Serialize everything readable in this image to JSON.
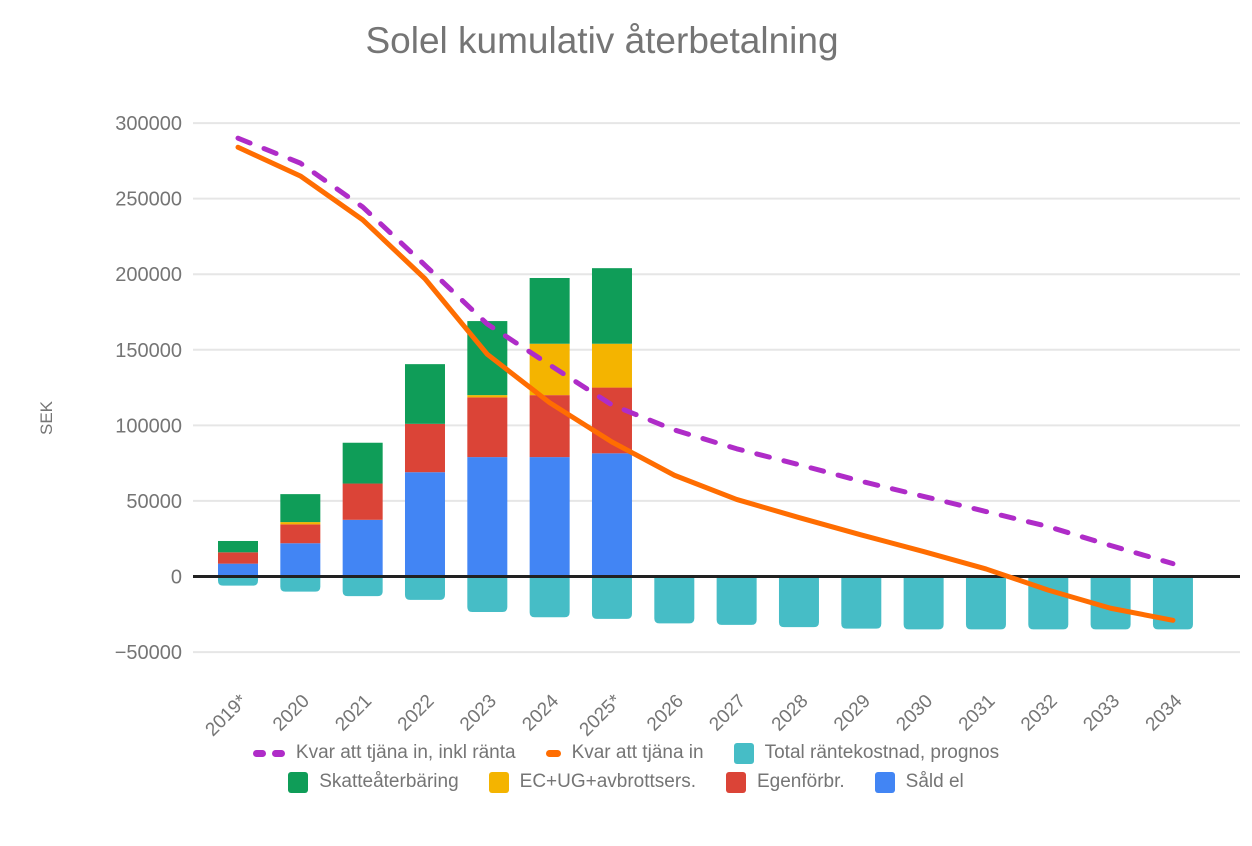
{
  "chart_data": {
    "type": "combo-stacked-bar-line",
    "title": "Solel kumulativ återbetalning",
    "ylabel": "SEK",
    "xlabel": "",
    "grid": true,
    "legend_position": "bottom",
    "ylim": [
      -50000,
      300000
    ],
    "y_ticks": [
      300000,
      250000,
      200000,
      150000,
      100000,
      50000,
      0,
      -50000
    ],
    "categories": [
      "2019*",
      "2020",
      "2021",
      "2022",
      "2023",
      "2024",
      "2025*",
      "2026",
      "2027",
      "2028",
      "2029",
      "2030",
      "2031",
      "2032",
      "2033",
      "2034"
    ],
    "bar_series": [
      {
        "name": "Såld el",
        "color": "#4285F4",
        "values": [
          8500,
          22000,
          37500,
          69000,
          79000,
          79000,
          81500,
          0,
          0,
          0,
          0,
          0,
          0,
          0,
          0,
          0
        ]
      },
      {
        "name": "Egenförbr.",
        "color": "#DB4437",
        "values": [
          7500,
          12500,
          24000,
          32000,
          39500,
          41000,
          43500,
          0,
          0,
          0,
          0,
          0,
          0,
          0,
          0,
          0
        ]
      },
      {
        "name": "EC+UG+avbrottsers.",
        "color": "#F4B400",
        "values": [
          0,
          1500,
          0,
          0,
          1500,
          34000,
          29000,
          0,
          0,
          0,
          0,
          0,
          0,
          0,
          0,
          0
        ]
      },
      {
        "name": "Skatteåterbäring",
        "color": "#0F9D58",
        "values": [
          7500,
          18500,
          27000,
          39500,
          49000,
          43500,
          50000,
          0,
          0,
          0,
          0,
          0,
          0,
          0,
          0,
          0
        ]
      },
      {
        "name": "Total räntekostnad, prognos",
        "color": "#46BDC6",
        "values": [
          -6000,
          -10000,
          -13000,
          -15500,
          -23500,
          -27000,
          -28000,
          -31000,
          -32000,
          -33500,
          -34500,
          -35000,
          -35000,
          -35000,
          -35000,
          -35000
        ]
      }
    ],
    "line_series": [
      {
        "name": "Kvar att tjäna in, inkl ränta",
        "color": "#AF2CC8",
        "dashed": true,
        "values": [
          290000,
          273500,
          244500,
          206000,
          167000,
          140000,
          113500,
          97000,
          84500,
          74000,
          63000,
          53000,
          43000,
          33000,
          20500,
          8500
        ]
      },
      {
        "name": "Kvar att tjäna in",
        "color": "#FF6D01",
        "dashed": false,
        "values": [
          284000,
          265000,
          236000,
          197000,
          147000,
          115000,
          89000,
          67000,
          51000,
          39000,
          27500,
          16500,
          5000,
          -9000,
          -21000,
          -29000
        ]
      }
    ],
    "legend": {
      "rows": [
        [
          {
            "marker": "dashes",
            "color": "#AF2CC8",
            "label": "Kvar att tjäna in, inkl ränta"
          },
          {
            "marker": "dash",
            "color": "#FF6D01",
            "label": "Kvar att tjäna in"
          },
          {
            "marker": "box",
            "color": "#46BDC6",
            "label": "Total räntekostnad, prognos"
          }
        ],
        [
          {
            "marker": "box",
            "color": "#0F9D58",
            "label": "Skatteåterbäring"
          },
          {
            "marker": "box",
            "color": "#F4B400",
            "label": "EC+UG+avbrottsers."
          },
          {
            "marker": "box",
            "color": "#DB4437",
            "label": "Egenförbr."
          },
          {
            "marker": "box",
            "color": "#4285F4",
            "label": "Såld el"
          }
        ]
      ]
    },
    "style": {
      "text_color": "#757575",
      "gridline_color": "#E6E6E6",
      "zero_line_color": "#212121",
      "background": "#FFFFFF"
    }
  }
}
